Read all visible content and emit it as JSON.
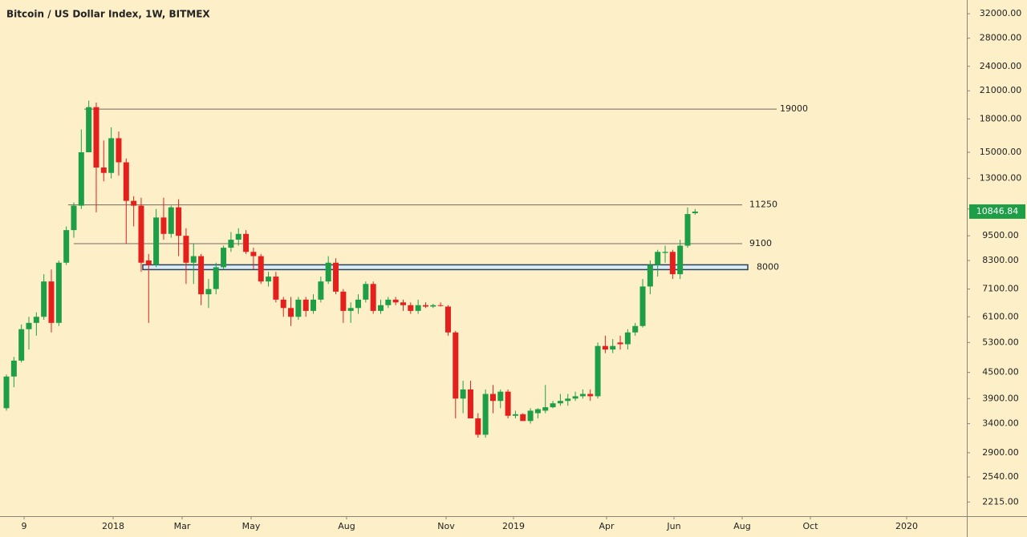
{
  "chart_data": {
    "type": "candlestick",
    "title": "Bitcoin / US Dollar Index, 1W, BITMEX",
    "log_scale": true,
    "up_color": "#1f9e48",
    "down_color": "#e3201c",
    "x": [
      0,
      1,
      2,
      3,
      4,
      5,
      6,
      7,
      8,
      9,
      10,
      11,
      12,
      13,
      14,
      15,
      16,
      17,
      18,
      19,
      20,
      21,
      22,
      23,
      24,
      25,
      26,
      27,
      28,
      29,
      30,
      31,
      32,
      33,
      34,
      35,
      36,
      37,
      38,
      39,
      40,
      41,
      42,
      43,
      44,
      45,
      46,
      47,
      48,
      49,
      50,
      51,
      52,
      53,
      54,
      55,
      56,
      57,
      58,
      59,
      60,
      61,
      62,
      63,
      64,
      65,
      66,
      67,
      68,
      69,
      70,
      71,
      72,
      73,
      74,
      75,
      76,
      77,
      78,
      79,
      80,
      81,
      82,
      83,
      84,
      85,
      86,
      87,
      88,
      89,
      90,
      91,
      92
    ],
    "open": [
      3700,
      4400,
      4800,
      5700,
      5900,
      6100,
      7400,
      5900,
      8200,
      9800,
      11200,
      15000,
      19200,
      13800,
      13400,
      16200,
      14200,
      11500,
      11200,
      8300,
      8100,
      10500,
      9600,
      11100,
      9500,
      8200,
      8500,
      6900,
      7100,
      8000,
      8900,
      9300,
      9600,
      8700,
      8500,
      7400,
      7600,
      6700,
      6400,
      6100,
      6700,
      6300,
      6700,
      7400,
      8200,
      7000,
      6300,
      6400,
      6700,
      7300,
      6300,
      6500,
      6700,
      6600,
      6500,
      6300,
      6500,
      6450,
      6500,
      6450,
      5600,
      3900,
      4100,
      3500,
      3200,
      4000,
      3850,
      4050,
      3550,
      3580,
      3450,
      3600,
      3650,
      3720,
      3800,
      3850,
      3900,
      3950,
      4000,
      3950,
      5200,
      5100,
      5300,
      5250,
      5600,
      5800,
      7200,
      8100,
      8650,
      8700,
      7700,
      9000,
      10750
    ],
    "high": [
      4450,
      4900,
      5850,
      6100,
      6250,
      7700,
      7900,
      8300,
      10000,
      11400,
      17000,
      19900,
      19700,
      16000,
      17200,
      16800,
      14500,
      11800,
      11700,
      8600,
      11000,
      11700,
      11200,
      11600,
      9900,
      9100,
      8600,
      7500,
      8200,
      9000,
      9700,
      9900,
      9800,
      8900,
      8600,
      7800,
      7800,
      6800,
      6800,
      6800,
      6800,
      6900,
      7600,
      8500,
      8400,
      7100,
      6600,
      6900,
      7400,
      7400,
      6700,
      6800,
      6800,
      6700,
      6600,
      6700,
      6600,
      6550,
      6600,
      6500,
      5650,
      4300,
      4300,
      3600,
      4100,
      4200,
      4100,
      4100,
      3650,
      3600,
      3700,
      3700,
      4200,
      3850,
      4000,
      4000,
      4050,
      4100,
      4100,
      5300,
      5500,
      5400,
      5500,
      5700,
      5900,
      7500,
      8300,
      8800,
      9000,
      8800,
      9300,
      11100,
      11000
    ],
    "low": [
      3650,
      4150,
      4750,
      5100,
      5500,
      6000,
      5600,
      5800,
      8100,
      9400,
      11000,
      15000,
      10800,
      12800,
      13000,
      13200,
      9100,
      10000,
      7800,
      5900,
      8000,
      9300,
      9400,
      8500,
      7300,
      7300,
      6500,
      6400,
      6900,
      7900,
      8700,
      9000,
      8600,
      7900,
      7300,
      7200,
      6600,
      6100,
      5800,
      6000,
      6100,
      6200,
      6600,
      7300,
      6900,
      5900,
      5900,
      6200,
      6600,
      6200,
      6200,
      6400,
      6500,
      6300,
      6200,
      6200,
      6400,
      6400,
      6450,
      5500,
      3500,
      3600,
      3500,
      3150,
      3150,
      3600,
      3700,
      3500,
      3500,
      3450,
      3400,
      3500,
      3600,
      3700,
      3750,
      3750,
      3850,
      3900,
      3850,
      3900,
      5000,
      5000,
      5100,
      5100,
      5500,
      5750,
      6900,
      7600,
      8200,
      7500,
      7500,
      8900,
      10650
    ],
    "close": [
      4400,
      4800,
      5700,
      5900,
      6100,
      7400,
      5900,
      8200,
      9800,
      11200,
      15000,
      19200,
      13800,
      13400,
      16200,
      14200,
      11500,
      11200,
      8200,
      8100,
      10500,
      9600,
      11100,
      9500,
      8200,
      8500,
      6900,
      7100,
      8000,
      8900,
      9300,
      9600,
      8700,
      8500,
      7400,
      7600,
      6700,
      6400,
      6100,
      6700,
      6300,
      6700,
      7400,
      8200,
      7000,
      6300,
      6400,
      6700,
      7300,
      6300,
      6500,
      6700,
      6600,
      6500,
      6300,
      6500,
      6450,
      6500,
      6480,
      5600,
      3900,
      4100,
      3500,
      3200,
      4000,
      3850,
      4050,
      3550,
      3580,
      3450,
      3650,
      3680,
      3720,
      3800,
      3850,
      3900,
      3950,
      4000,
      3950,
      5200,
      5100,
      5200,
      5250,
      5600,
      5800,
      7200,
      8100,
      8700,
      8700,
      7700,
      9000,
      10700,
      10846.84
    ],
    "ylim": [
      2050,
      34500
    ],
    "yticks": [
      {
        "value": 32000,
        "label": "32000.00"
      },
      {
        "value": 28000,
        "label": "28000.00"
      },
      {
        "value": 24000,
        "label": "24000.00"
      },
      {
        "value": 21000,
        "label": "21000.00"
      },
      {
        "value": 18000,
        "label": "18000.00"
      },
      {
        "value": 15000,
        "label": "15000.00"
      },
      {
        "value": 13000,
        "label": "13000.00"
      },
      {
        "value": 11000,
        "label": "11000.00"
      },
      {
        "value": 9500,
        "label": "9500.00"
      },
      {
        "value": 8300,
        "label": "8300.00"
      },
      {
        "value": 7100,
        "label": "7100.00"
      },
      {
        "value": 6100,
        "label": "6100.00"
      },
      {
        "value": 5300,
        "label": "5300.00"
      },
      {
        "value": 4500,
        "label": "4500.00"
      },
      {
        "value": 3900,
        "label": "3900.00"
      },
      {
        "value": 3400,
        "label": "3400.00"
      },
      {
        "value": 2900,
        "label": "2900.00"
      },
      {
        "value": 2540,
        "label": "2540.00"
      },
      {
        "value": 2215,
        "label": "2215.00"
      }
    ],
    "xlim": [
      -0.86,
      128.3
    ],
    "xticks": [
      {
        "value": 2.36,
        "label": "9"
      },
      {
        "value": 14.26,
        "label": "2018"
      },
      {
        "value": 23.47,
        "label": "Mar"
      },
      {
        "value": 32.69,
        "label": "May"
      },
      {
        "value": 45.44,
        "label": "Aug"
      },
      {
        "value": 58.74,
        "label": "Nov"
      },
      {
        "value": 67.74,
        "label": "2019"
      },
      {
        "value": 80.17,
        "label": "Apr"
      },
      {
        "value": 89.18,
        "label": "Jun"
      },
      {
        "value": 98.29,
        "label": "Aug"
      },
      {
        "value": 107.4,
        "label": "Oct"
      },
      {
        "value": 120.26,
        "label": "2020"
      }
    ],
    "levels": [
      19000,
      11250,
      9100
    ],
    "zone": 8000
  }
}
